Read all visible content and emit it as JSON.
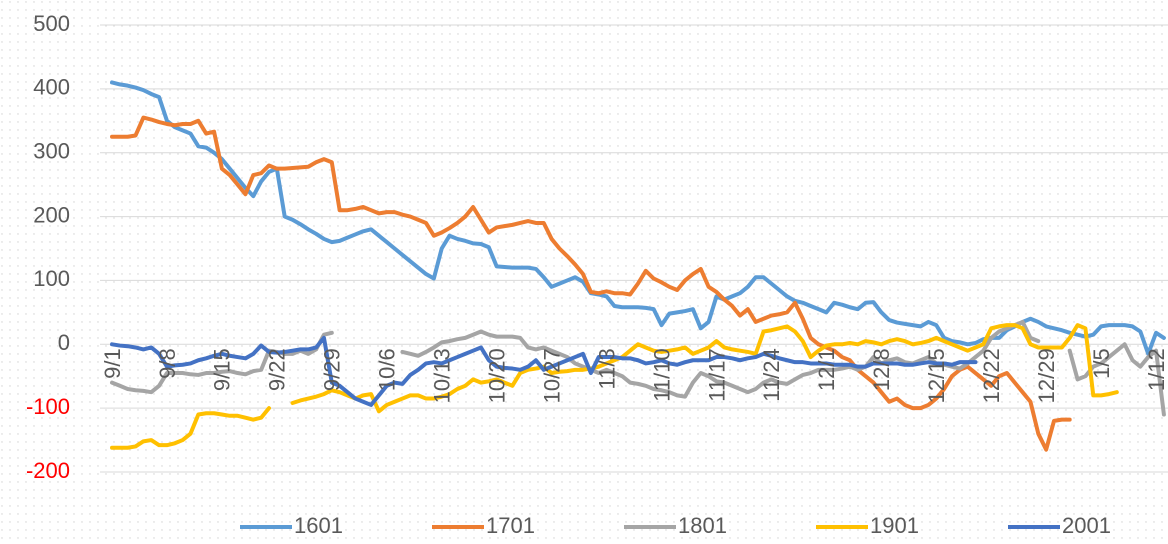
{
  "chart_data": {
    "type": "line",
    "categories": [
      "9/1",
      null,
      null,
      null,
      null,
      null,
      null,
      "9/8",
      null,
      null,
      null,
      null,
      null,
      null,
      "9/15",
      null,
      null,
      null,
      null,
      null,
      null,
      "9/22",
      null,
      null,
      null,
      null,
      null,
      null,
      "9/29",
      null,
      null,
      null,
      null,
      null,
      null,
      "10/6",
      null,
      null,
      null,
      null,
      null,
      null,
      "10/13",
      null,
      null,
      null,
      null,
      null,
      null,
      "10/20",
      null,
      null,
      null,
      null,
      null,
      null,
      "10/27",
      null,
      null,
      null,
      null,
      null,
      null,
      "11/3",
      null,
      null,
      null,
      null,
      null,
      null,
      "11/10",
      null,
      null,
      null,
      null,
      null,
      null,
      "11/17",
      null,
      null,
      null,
      null,
      null,
      null,
      "11/24",
      null,
      null,
      null,
      null,
      null,
      null,
      "12/1",
      null,
      null,
      null,
      null,
      null,
      null,
      "12/8",
      null,
      null,
      null,
      null,
      null,
      null,
      "12/15",
      null,
      null,
      null,
      null,
      null,
      null,
      "12/22",
      null,
      null,
      null,
      null,
      null,
      null,
      "12/29",
      null,
      null,
      null,
      null,
      null,
      null,
      "1/5",
      null,
      null,
      null,
      null,
      null,
      null,
      "1/12",
      null
    ],
    "series": [
      {
        "name": "1601",
        "color": "#5b9bd5",
        "values": [
          410,
          407,
          405,
          402,
          398,
          392,
          387,
          350,
          340,
          335,
          330,
          310,
          308,
          300,
          290,
          275,
          260,
          245,
          232,
          255,
          270,
          275,
          200,
          195,
          188,
          180,
          173,
          165,
          160,
          162,
          167,
          172,
          177,
          180,
          170,
          160,
          150,
          140,
          130,
          120,
          110,
          103,
          150,
          170,
          165,
          162,
          158,
          157,
          152,
          122,
          121,
          120,
          120,
          120,
          118,
          105,
          90,
          95,
          100,
          105,
          98,
          80,
          78,
          75,
          60,
          58,
          58,
          58,
          57,
          55,
          30,
          48,
          50,
          52,
          55,
          25,
          35,
          75,
          70,
          75,
          80,
          90,
          105,
          105,
          95,
          85,
          75,
          68,
          65,
          60,
          55,
          50,
          65,
          62,
          58,
          55,
          65,
          66,
          50,
          38,
          34,
          32,
          30,
          28,
          35,
          30,
          10,
          5,
          3,
          0,
          2,
          8,
          10,
          10,
          22,
          28,
          35,
          40,
          35,
          28,
          25,
          22,
          18,
          15,
          12,
          15,
          28,
          30,
          30,
          30,
          28,
          20,
          -15,
          18,
          10
        ]
      },
      {
        "name": "1701",
        "color": "#ed7d31",
        "values": [
          325,
          325,
          325,
          327,
          355,
          352,
          348,
          345,
          343,
          345,
          345,
          350,
          330,
          333,
          275,
          265,
          250,
          235,
          265,
          268,
          280,
          275,
          275,
          276,
          277,
          278,
          285,
          290,
          285,
          210,
          210,
          212,
          215,
          210,
          205,
          207,
          207,
          203,
          200,
          195,
          190,
          170,
          175,
          182,
          190,
          200,
          215,
          195,
          175,
          183,
          185,
          187,
          190,
          193,
          190,
          190,
          165,
          150,
          138,
          125,
          110,
          82,
          80,
          83,
          80,
          80,
          78,
          95,
          115,
          103,
          97,
          90,
          85,
          100,
          110,
          118,
          90,
          82,
          70,
          60,
          45,
          55,
          35,
          40,
          45,
          47,
          50,
          65,
          40,
          10,
          0,
          -5,
          -10,
          -20,
          -25,
          -40,
          -50,
          -60,
          -75,
          -90,
          -85,
          -95,
          -100,
          -100,
          -95,
          -85,
          -70,
          -50,
          -40,
          -35,
          -45,
          -55,
          -65,
          -50,
          -45,
          -60,
          -75,
          -90,
          -140,
          -165,
          -120,
          -118,
          -118,
          null,
          null,
          null,
          null,
          null,
          null,
          null,
          null,
          null,
          null,
          null,
          null
        ]
      },
      {
        "name": "1801",
        "color": "#a5a5a5",
        "values": [
          -60,
          -65,
          -70,
          -72,
          -73,
          -75,
          -65,
          -45,
          -45,
          -45,
          -47,
          -48,
          -45,
          -45,
          -43,
          -42,
          -45,
          -47,
          -42,
          -40,
          -10,
          -12,
          -15,
          -15,
          -10,
          -15,
          -8,
          15,
          18,
          null,
          null,
          null,
          null,
          null,
          null,
          null,
          null,
          -12,
          -15,
          -18,
          -12,
          -5,
          3,
          5,
          8,
          10,
          15,
          20,
          15,
          12,
          12,
          12,
          10,
          -5,
          -8,
          -5,
          -10,
          -15,
          -20,
          -30,
          -35,
          -40,
          -45,
          -40,
          -45,
          -50,
          -60,
          -62,
          -65,
          -70,
          -72,
          -75,
          -80,
          -82,
          -60,
          -45,
          -50,
          -58,
          -60,
          -65,
          -70,
          -75,
          -70,
          -60,
          -55,
          -60,
          -62,
          -55,
          -48,
          -45,
          -40,
          -40,
          -40,
          -38,
          -35,
          -40,
          -35,
          -20,
          -30,
          -25,
          -22,
          -28,
          -30,
          -25,
          -20,
          -30,
          -32,
          -35,
          -38,
          -30,
          -20,
          -10,
          10,
          20,
          25,
          30,
          35,
          10,
          5,
          null,
          null,
          null,
          -10,
          -55,
          -50,
          -35,
          -30,
          -20,
          -10,
          0,
          -25,
          -35,
          -20,
          -10,
          -110
        ]
      },
      {
        "name": "1901",
        "color": "#ffc000",
        "values": [
          -162,
          -162,
          -162,
          -160,
          -152,
          -150,
          -158,
          -158,
          -155,
          -150,
          -140,
          -110,
          -108,
          -108,
          -110,
          -112,
          -112,
          -115,
          -118,
          -115,
          -100,
          null,
          null,
          -92,
          -88,
          -85,
          -82,
          -78,
          -72,
          -75,
          -80,
          -85,
          -80,
          -78,
          -105,
          -95,
          -90,
          -85,
          -80,
          -80,
          -85,
          -85,
          -82,
          -78,
          -70,
          -65,
          -55,
          -60,
          -58,
          -55,
          -60,
          -65,
          -45,
          -40,
          -38,
          -35,
          -45,
          -43,
          -42,
          -40,
          -40,
          -38,
          -35,
          -30,
          -25,
          -20,
          -10,
          0,
          -5,
          -10,
          -12,
          -10,
          -8,
          -5,
          -15,
          -10,
          -5,
          5,
          -5,
          -8,
          -10,
          -12,
          -15,
          20,
          22,
          25,
          28,
          20,
          5,
          -20,
          -10,
          -2,
          0,
          0,
          2,
          0,
          5,
          3,
          0,
          5,
          8,
          5,
          0,
          2,
          5,
          10,
          5,
          0,
          -5,
          -10,
          -5,
          0,
          25,
          28,
          30,
          30,
          25,
          0,
          -5,
          -5,
          -5,
          -5,
          10,
          30,
          25,
          -80,
          -80,
          -78,
          -75,
          null,
          null,
          null,
          null,
          null,
          null
        ]
      },
      {
        "name": "2001",
        "color": "#4472c4",
        "values": [
          0,
          -2,
          -3,
          -5,
          -8,
          -5,
          -15,
          -35,
          -33,
          -32,
          -30,
          -25,
          -22,
          -18,
          -15,
          -18,
          -20,
          -22,
          -15,
          -2,
          -12,
          -13,
          -12,
          -10,
          -8,
          -8,
          -5,
          10,
          -60,
          -65,
          -75,
          -85,
          -90,
          -95,
          -80,
          -65,
          -60,
          -62,
          -48,
          -40,
          -30,
          -28,
          -30,
          -25,
          -20,
          -15,
          -10,
          -5,
          -25,
          -35,
          -37,
          -38,
          -40,
          -35,
          -25,
          -40,
          -35,
          -30,
          -25,
          -20,
          -15,
          -45,
          -20,
          -20,
          -20,
          -22,
          -22,
          -25,
          -30,
          -28,
          -25,
          -30,
          -32,
          -28,
          -25,
          -25,
          -25,
          -20,
          -20,
          -22,
          -25,
          -22,
          -20,
          -15,
          -18,
          -22,
          -25,
          -28,
          -28,
          -30,
          -30,
          -30,
          -32,
          -32,
          -32,
          -35,
          -35,
          -30,
          -30,
          -30,
          -30,
          -32,
          -32,
          -30,
          -28,
          -30,
          -30,
          -32,
          -28,
          -28,
          -28,
          null,
          null,
          null,
          null,
          null,
          null,
          null,
          null,
          null,
          null,
          null,
          null,
          null,
          null,
          null,
          null,
          null,
          null,
          null,
          null,
          null,
          null,
          null,
          null
        ]
      }
    ],
    "ylim": [
      -200,
      500
    ],
    "yticks": [
      -200,
      -100,
      0,
      100,
      200,
      300,
      400,
      500
    ],
    "grid": true,
    "legend": "bottom",
    "negative_tick_color": "#ff0000"
  }
}
